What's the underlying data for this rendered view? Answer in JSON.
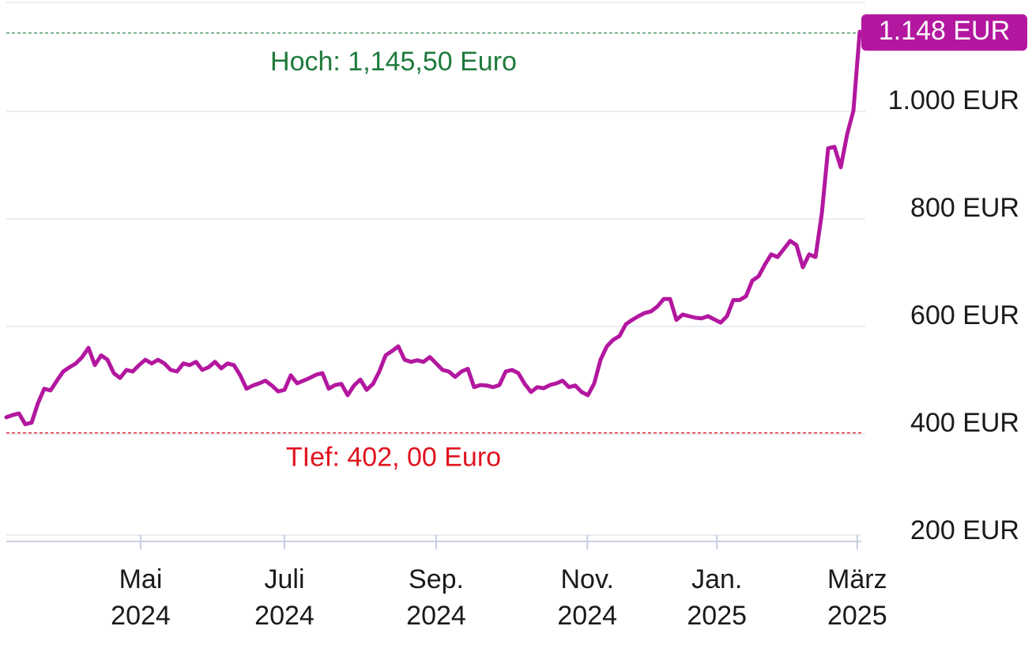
{
  "chart_data": {
    "type": "line",
    "color": "#b3179f",
    "xlim": [
      0,
      135
    ],
    "xticks": [
      {
        "value": 21.25,
        "label": "Mai 2024"
      },
      {
        "value": 44,
        "label": "Juli 2024"
      },
      {
        "value": 68,
        "label": "Sep. 2024"
      },
      {
        "value": 91.9,
        "label": "Nov. 2024"
      },
      {
        "value": 112.4,
        "label": "Jan. 2025"
      },
      {
        "value": 134.6,
        "label": "März 2025"
      }
    ],
    "ylim": [
      200,
      1207
    ],
    "yticks": [
      {
        "value": 200,
        "label": "200 EUR"
      },
      {
        "value": 400,
        "label": "400 EUR"
      },
      {
        "value": 600,
        "label": "600 EUR"
      },
      {
        "value": 800,
        "label": "800 EUR"
      },
      {
        "value": 1000,
        "label": "1.000 EUR"
      }
    ],
    "grid": true,
    "values": [
      431,
      435,
      438,
      418,
      421,
      457,
      484,
      481,
      499,
      516,
      524,
      531,
      543,
      560,
      528,
      546,
      538,
      513,
      504,
      519,
      516,
      528,
      538,
      531,
      538,
      531,
      519,
      516,
      531,
      528,
      534,
      519,
      524,
      534,
      522,
      531,
      528,
      509,
      484,
      490,
      494,
      499,
      490,
      479,
      482,
      509,
      494,
      499,
      504,
      510,
      513,
      484,
      491,
      493,
      472,
      490,
      501,
      482,
      493,
      516,
      546,
      554,
      563,
      538,
      534,
      537,
      534,
      543,
      531,
      519,
      516,
      506,
      516,
      521,
      487,
      491,
      490,
      487,
      491,
      516,
      519,
      513,
      493,
      478,
      487,
      485,
      491,
      494,
      499,
      487,
      490,
      478,
      472,
      494,
      538,
      563,
      575,
      582,
      604,
      612,
      619,
      625,
      628,
      637,
      651,
      651,
      612,
      622,
      619,
      616,
      615,
      619,
      613,
      607,
      619,
      649,
      649,
      656,
      685,
      693,
      715,
      734,
      729,
      744,
      759,
      751,
      710,
      734,
      729,
      810,
      931,
      934,
      896,
      957,
      1001,
      1148
    ],
    "last_value_label": "1.148 EUR",
    "annotations": [
      {
        "text": "Hoch: 1,145,50 Euro",
        "value": 1145.5,
        "color": "#1e7a3c"
      },
      {
        "text": "TIef: 402, 00 Euro",
        "value": 402,
        "color": "#e0141e"
      }
    ]
  }
}
